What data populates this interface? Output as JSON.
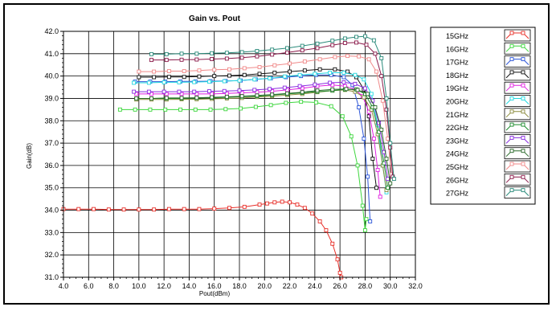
{
  "chart_data": {
    "type": "line",
    "title": "Gain vs. Pout",
    "xlabel": "Pout(dBm)",
    "ylabel": "Gain(dB)",
    "xlim": [
      4.0,
      32.0
    ],
    "ylim": [
      31.0,
      42.0
    ],
    "x_ticks": [
      "4.0",
      "6.0",
      "8.0",
      "10.0",
      "12.0",
      "14.0",
      "16.0",
      "18.0",
      "20.0",
      "22.0",
      "24.0",
      "26.0",
      "28.0",
      "30.0",
      "32.0"
    ],
    "y_ticks": [
      "31.0",
      "32.0",
      "33.0",
      "34.0",
      "35.0",
      "36.0",
      "37.0",
      "38.0",
      "39.0",
      "40.0",
      "41.0",
      "42.0"
    ],
    "grid": true,
    "legend_position": "right",
    "marker": "square",
    "series": [
      {
        "name": "15GHz",
        "color": "#e8302a",
        "x": [
          4.0,
          5.2,
          6.4,
          7.6,
          8.8,
          10.0,
          11.2,
          12.4,
          13.6,
          14.8,
          16.0,
          17.2,
          18.4,
          19.6,
          20.2,
          20.8,
          21.4,
          22.0,
          22.6,
          23.2,
          23.8,
          24.4,
          24.9,
          25.4,
          25.8,
          26.0,
          26.1
        ],
        "y": [
          34.05,
          34.05,
          34.05,
          34.03,
          34.03,
          34.03,
          34.03,
          34.05,
          34.05,
          34.05,
          34.07,
          34.1,
          34.15,
          34.25,
          34.3,
          34.35,
          34.38,
          34.35,
          34.25,
          34.1,
          33.85,
          33.5,
          33.1,
          32.5,
          31.8,
          31.2,
          31.0
        ]
      },
      {
        "name": "16GHz",
        "color": "#3dd63d",
        "x": [
          8.5,
          9.7,
          10.9,
          12.1,
          13.3,
          14.5,
          15.7,
          16.9,
          18.1,
          19.3,
          20.5,
          21.7,
          22.9,
          24.1,
          25.3,
          26.2,
          26.9,
          27.4,
          27.8,
          28.0,
          28.1
        ],
        "y": [
          38.5,
          38.5,
          38.5,
          38.5,
          38.5,
          38.5,
          38.5,
          38.52,
          38.55,
          38.62,
          38.7,
          38.8,
          38.85,
          38.82,
          38.65,
          38.2,
          37.3,
          36.0,
          34.2,
          33.1,
          33.6
        ]
      },
      {
        "name": "17GHz",
        "color": "#2c55d8",
        "x": [
          9.7,
          10.9,
          12.1,
          13.3,
          14.5,
          15.7,
          16.9,
          18.1,
          19.3,
          20.5,
          21.7,
          22.9,
          24.1,
          25.3,
          26.3,
          27.0,
          27.5,
          27.9,
          28.2,
          28.4
        ],
        "y": [
          39.75,
          39.75,
          39.75,
          39.76,
          39.76,
          39.77,
          39.78,
          39.8,
          39.85,
          39.9,
          39.95,
          40.0,
          40.05,
          40.05,
          39.95,
          39.6,
          38.6,
          37.2,
          35.5,
          33.5
        ]
      },
      {
        "name": "18GHz",
        "color": "#111111",
        "x": [
          10.0,
          11.2,
          12.4,
          13.6,
          14.8,
          16.0,
          17.2,
          18.4,
          19.6,
          20.8,
          22.0,
          23.2,
          24.4,
          25.6,
          26.6,
          27.3,
          27.9,
          28.3,
          28.6,
          28.9
        ],
        "y": [
          39.95,
          39.95,
          39.96,
          39.96,
          39.98,
          40.0,
          40.02,
          40.05,
          40.1,
          40.15,
          40.2,
          40.25,
          40.3,
          40.3,
          40.2,
          39.95,
          39.4,
          38.2,
          36.3,
          35.0
        ]
      },
      {
        "name": "19GHz",
        "color": "#e020e0",
        "x": [
          9.8,
          11.0,
          12.2,
          13.4,
          14.6,
          15.8,
          17.0,
          18.2,
          19.4,
          20.6,
          21.8,
          23.0,
          24.2,
          25.4,
          26.4,
          27.2,
          27.8,
          28.3,
          28.7,
          29.0,
          29.2
        ],
        "y": [
          39.2,
          39.2,
          39.2,
          39.2,
          39.2,
          39.2,
          39.22,
          39.25,
          39.28,
          39.32,
          39.38,
          39.45,
          39.55,
          39.6,
          39.55,
          39.4,
          39.1,
          38.4,
          37.2,
          35.8,
          34.6
        ]
      },
      {
        "name": "20GHz",
        "color": "#22d8e0",
        "x": [
          9.6,
          10.8,
          12.0,
          13.2,
          14.4,
          15.6,
          16.8,
          18.0,
          19.2,
          20.4,
          21.6,
          22.8,
          24.0,
          25.2,
          26.3,
          27.2,
          27.9,
          28.5,
          29.0,
          29.4,
          29.7
        ],
        "y": [
          39.7,
          39.7,
          39.72,
          39.72,
          39.73,
          39.75,
          39.77,
          39.8,
          39.85,
          39.9,
          39.98,
          40.05,
          40.1,
          40.15,
          40.15,
          40.05,
          39.85,
          39.2,
          37.8,
          36.0,
          34.8
        ]
      },
      {
        "name": "21GHz",
        "color": "#8a8a3a",
        "x": [
          9.8,
          11.0,
          12.2,
          13.4,
          14.6,
          15.8,
          17.0,
          18.2,
          19.4,
          20.6,
          21.8,
          23.0,
          24.2,
          25.4,
          26.4,
          27.2,
          27.9,
          28.5,
          29.0,
          29.4,
          29.7
        ],
        "y": [
          38.95,
          38.95,
          38.95,
          38.96,
          38.96,
          38.98,
          39.0,
          39.02,
          39.06,
          39.1,
          39.15,
          39.2,
          39.28,
          39.35,
          39.38,
          39.3,
          39.05,
          38.5,
          37.4,
          36.0,
          34.9
        ]
      },
      {
        "name": "22GHz",
        "color": "#1a8a2a",
        "x": [
          9.8,
          11.0,
          12.2,
          13.4,
          14.6,
          15.8,
          17.0,
          18.2,
          19.4,
          20.6,
          21.8,
          23.0,
          24.2,
          25.4,
          26.4,
          27.3,
          28.0,
          28.6,
          29.1,
          29.5,
          29.8
        ],
        "y": [
          39.0,
          39.0,
          39.0,
          39.0,
          39.02,
          39.03,
          39.05,
          39.08,
          39.1,
          39.15,
          39.2,
          39.25,
          39.3,
          39.35,
          39.4,
          39.4,
          39.2,
          38.6,
          37.5,
          36.1,
          35.0
        ]
      },
      {
        "name": "23GHz",
        "color": "#8a2ee0",
        "x": [
          9.6,
          10.8,
          12.0,
          13.2,
          14.4,
          15.6,
          16.8,
          18.0,
          19.2,
          20.4,
          21.6,
          22.8,
          24.0,
          25.2,
          26.3,
          27.2,
          28.0,
          28.6,
          29.1,
          29.5,
          29.8
        ],
        "y": [
          39.3,
          39.3,
          39.3,
          39.3,
          39.3,
          39.32,
          39.33,
          39.35,
          39.38,
          39.42,
          39.48,
          39.55,
          39.62,
          39.7,
          39.72,
          39.65,
          39.45,
          38.9,
          37.9,
          36.6,
          35.4
        ]
      },
      {
        "name": "24GHz",
        "color": "#2a6a2a",
        "x": [
          9.8,
          11.0,
          12.2,
          13.4,
          14.6,
          15.8,
          17.0,
          18.2,
          19.4,
          20.6,
          21.8,
          23.0,
          24.2,
          25.4,
          26.5,
          27.4,
          28.2,
          28.8,
          29.3,
          29.7,
          30.0
        ],
        "y": [
          39.0,
          39.0,
          39.02,
          39.02,
          39.03,
          39.05,
          39.07,
          39.1,
          39.13,
          39.17,
          39.22,
          39.28,
          39.35,
          39.4,
          39.42,
          39.38,
          39.2,
          38.6,
          37.6,
          36.3,
          35.2
        ]
      },
      {
        "name": "25GHz",
        "color": "#f08a8a",
        "x": [
          10.0,
          11.2,
          12.4,
          13.6,
          14.8,
          16.0,
          17.2,
          18.4,
          19.6,
          20.8,
          22.0,
          23.2,
          24.4,
          25.6,
          26.6,
          27.5,
          28.3,
          28.9,
          29.4,
          29.8,
          30.1
        ],
        "y": [
          40.2,
          40.2,
          40.22,
          40.22,
          40.25,
          40.28,
          40.3,
          40.35,
          40.4,
          40.48,
          40.56,
          40.65,
          40.75,
          40.85,
          40.9,
          40.88,
          40.75,
          40.2,
          38.9,
          37.2,
          35.6
        ]
      },
      {
        "name": "26GHz",
        "color": "#8a1a4a",
        "x": [
          11.0,
          12.2,
          13.4,
          14.6,
          15.8,
          17.0,
          18.2,
          19.4,
          20.6,
          21.8,
          23.0,
          24.2,
          25.4,
          26.4,
          27.3,
          28.1,
          28.8,
          29.3,
          29.7,
          30.0,
          30.2
        ],
        "y": [
          40.72,
          40.72,
          40.73,
          40.74,
          40.76,
          40.78,
          40.82,
          40.88,
          40.96,
          41.05,
          41.15,
          41.25,
          41.38,
          41.48,
          41.5,
          41.4,
          41.0,
          40.0,
          38.5,
          36.8,
          35.5
        ]
      },
      {
        "name": "27GHz",
        "color": "#2a8a7a",
        "x": [
          11.0,
          12.2,
          13.4,
          14.6,
          15.8,
          17.0,
          18.2,
          19.4,
          20.6,
          21.8,
          23.0,
          24.2,
          25.4,
          26.4,
          27.3,
          28.0,
          28.7,
          29.3,
          29.7,
          30.0,
          30.3
        ],
        "y": [
          40.98,
          40.98,
          41.0,
          41.0,
          41.02,
          41.04,
          41.07,
          41.12,
          41.18,
          41.25,
          41.35,
          41.45,
          41.58,
          41.68,
          41.75,
          41.78,
          41.6,
          40.8,
          39.0,
          37.0,
          35.4
        ]
      }
    ]
  }
}
